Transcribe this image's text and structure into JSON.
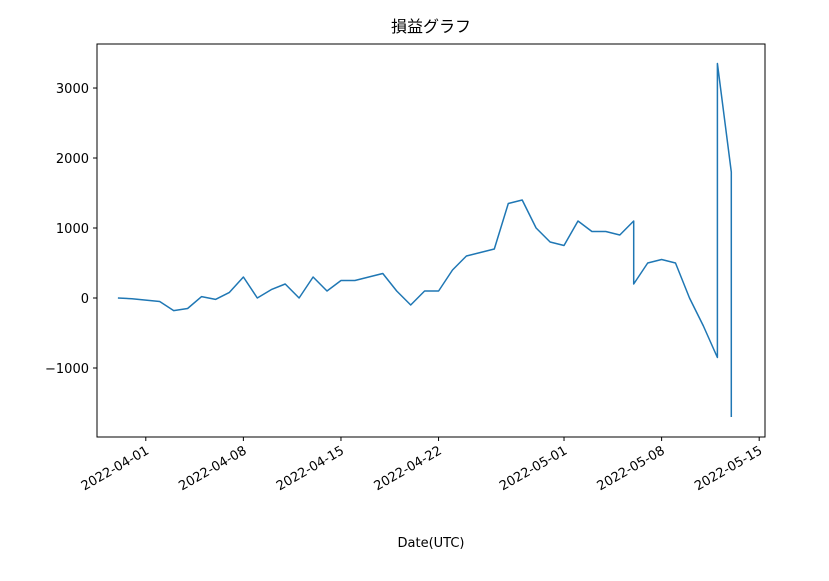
{
  "chart_data": {
    "type": "line",
    "title": "損益グラフ",
    "xlabel": "Date(UTC)",
    "x": [
      "2022-03-30",
      "2022-03-31",
      "2022-04-01",
      "2022-04-02",
      "2022-04-03",
      "2022-04-04",
      "2022-04-05",
      "2022-04-06",
      "2022-04-07",
      "2022-04-08",
      "2022-04-09",
      "2022-04-10",
      "2022-04-11",
      "2022-04-12",
      "2022-04-13",
      "2022-04-14",
      "2022-04-15",
      "2022-04-16",
      "2022-04-17",
      "2022-04-18",
      "2022-04-19",
      "2022-04-20",
      "2022-04-21",
      "2022-04-22",
      "2022-04-23",
      "2022-04-24",
      "2022-04-25",
      "2022-04-26",
      "2022-04-27",
      "2022-04-28",
      "2022-04-29",
      "2022-04-30",
      "2022-05-01",
      "2022-05-02",
      "2022-05-03",
      "2022-05-04",
      "2022-05-05",
      "2022-05-06",
      "2022-05-06",
      "2022-05-07",
      "2022-05-08",
      "2022-05-09",
      "2022-05-10",
      "2022-05-11",
      "2022-05-12",
      "2022-05-12",
      "2022-05-12",
      "2022-05-13",
      "2022-05-13",
      "2022-05-13"
    ],
    "series": [
      {
        "name": "損益",
        "color": "#1f77b4",
        "values": [
          0,
          -10,
          -30,
          -50,
          -180,
          -150,
          20,
          -20,
          80,
          300,
          0,
          120,
          200,
          0,
          300,
          100,
          250,
          250,
          300,
          350,
          100,
          -100,
          100,
          100,
          400,
          600,
          650,
          700,
          1350,
          1400,
          1000,
          800,
          750,
          1100,
          950,
          950,
          900,
          1100,
          200,
          500,
          550,
          500,
          0,
          -400,
          -850,
          300,
          3350,
          1800,
          1200,
          -1700
        ]
      }
    ],
    "xlim": [
      "2022-03-28T12:00Z",
      "2022-05-15T10:00Z"
    ],
    "xticks": [
      "2022-04-01",
      "2022-04-08",
      "2022-04-15",
      "2022-04-22",
      "2022-05-01",
      "2022-05-08",
      "2022-05-15"
    ],
    "ylim": [
      -1986,
      3629
    ],
    "yticks": [
      {
        "value": -1000,
        "label": "−1000"
      },
      0,
      1000,
      2000,
      3000
    ]
  }
}
